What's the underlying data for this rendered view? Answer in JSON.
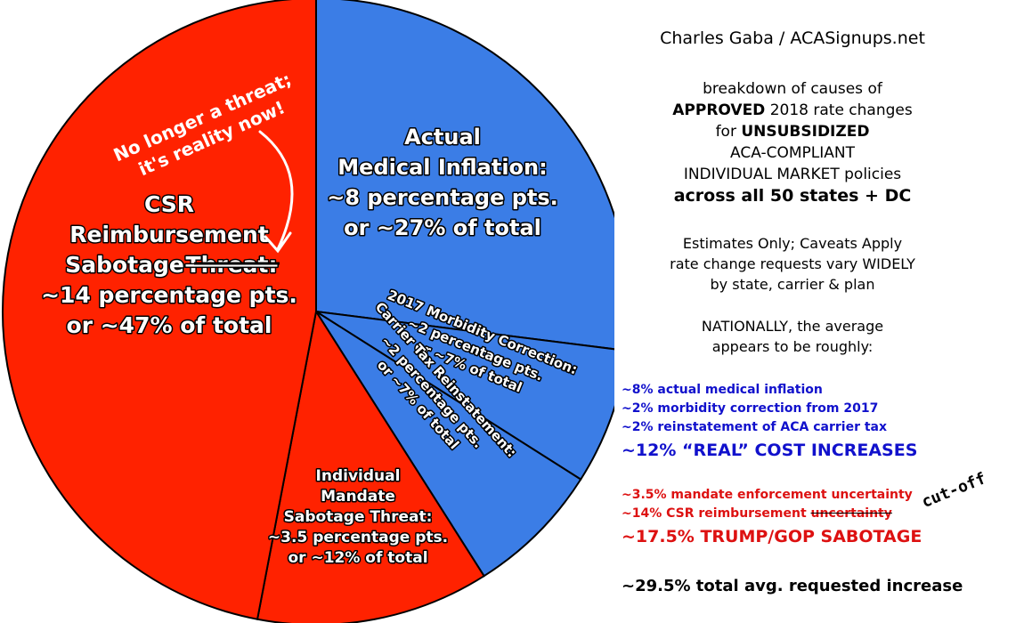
{
  "chart_data": {
    "type": "pie",
    "title": "",
    "slices": [
      {
        "name": "Actual Medical Inflation",
        "value": 27,
        "points": 8,
        "color": "#3b7de6",
        "label": [
          "Actual",
          "Medical Inflation:",
          "~8 percentage pts.",
          "or ~27% of total"
        ]
      },
      {
        "name": "2017 Morbidity Correction",
        "value": 7,
        "points": 2,
        "color": "#3b7de6",
        "label": [
          "2017 Morbidity Correction:",
          "~2 percentage pts.",
          "or ~7% of total"
        ]
      },
      {
        "name": "Carrier Tax Reinstatement",
        "value": 7,
        "points": 2,
        "color": "#3b7de6",
        "label": [
          "Carrier Tax Reinstatement:",
          "~2 percentage pts.",
          "or ~7% of total"
        ]
      },
      {
        "name": "Individual Mandate Sabotage Threat",
        "value": 12,
        "points": 3.5,
        "color": "#ff2200",
        "label": [
          "Individual",
          "Mandate",
          "Sabotage Threat:",
          "~3.5 percentage pts.",
          "or ~12% of total"
        ]
      },
      {
        "name": "CSR Reimbursement Sabotage",
        "value": 47,
        "points": 14,
        "color": "#ff2200",
        "label": [
          "CSR",
          "Reimbursement",
          "Sabotage",
          "Threat:",
          "~14 percentage pts.",
          "or ~47% of total"
        ]
      }
    ],
    "annotation": [
      "No longer a threat;",
      "it's reality now!"
    ]
  },
  "panel": {
    "credit": "Charles Gaba / ACASignups.net",
    "breakdown_1": "breakdown of causes of",
    "approved": "APPROVED",
    "breakdown_2": " 2018 rate changes",
    "for": "for ",
    "unsubsidized": "UNSUBSIDIZED",
    "compliant": "ACA-COMPLIANT",
    "market": "INDIVIDUAL MARKET policies",
    "states": "across all 50 states + DC",
    "caveat_1": "Estimates Only; Caveats Apply",
    "caveat_2": "rate change requests vary WIDELY",
    "caveat_3": "by state, carrier & plan",
    "national_1": "NATIONALLY, the average",
    "national_2": "appears to be roughly:",
    "blue_1": "~8% actual medical inflation",
    "blue_2": "~2% morbidity correction from 2017",
    "blue_3": "~2% reinstatement of ACA carrier tax",
    "blue_total": "~12% “REAL” COST INCREASES",
    "red_1": "~3.5% mandate enforcement uncertainty",
    "red_2": "~14% CSR reimbursement ",
    "red_2_strike": "uncertainty",
    "cutoff": "cut-off",
    "red_total": "~17.5% TRUMP/GOP SABOTAGE",
    "grand_total": "~29.5% total avg. requested increase"
  },
  "colors": {
    "blue_slice": "#3b7de6",
    "red_slice": "#ff2200",
    "blue_text": "#1111cc",
    "red_text": "#dd1111"
  }
}
